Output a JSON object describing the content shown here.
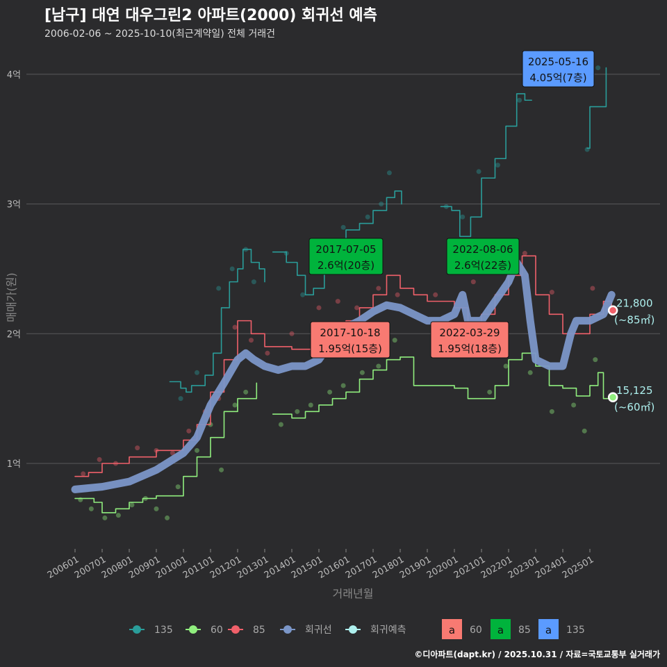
{
  "header": {
    "title": "[남구] 대연 대우그린2 아파트(2000) 회귀선 예측",
    "subtitle": "2006-02-06 ~ 2025-10-10(최근계약일) 전체 거래건"
  },
  "footer": "©디아파트(dapt.kr) / 2025.10.31 / 자료=국토교통부 실거래가",
  "chart_data": {
    "type": "line",
    "xlabel": "거래년월",
    "ylabel": "매매가(원)",
    "xlim": [
      2005.3,
      2026.6
    ],
    "ylim": [
      0.34,
      4.36
    ],
    "grid": true,
    "y_ticks": [
      {
        "v": 1,
        "label": "1억"
      },
      {
        "v": 2,
        "label": "2억"
      },
      {
        "v": 3,
        "label": "3억"
      },
      {
        "v": 4,
        "label": "4억"
      }
    ],
    "x_ticks": [
      "200601",
      "200701",
      "200801",
      "200901",
      "201001",
      "201101",
      "201201",
      "201301",
      "201401",
      "201501",
      "201601",
      "201701",
      "201801",
      "201901",
      "202001",
      "202101",
      "202201",
      "202301",
      "202401",
      "202501"
    ],
    "colors": {
      "135": "#2a9d9a",
      "60": "#90ee7e",
      "85": "#f0606a",
      "regression": "#7b96c8",
      "prediction": "#aef0ee"
    },
    "series": [
      {
        "name": "135",
        "segments": [
          [
            [
              2009.5,
              1.63
            ],
            [
              2009.9,
              1.58
            ],
            [
              2010.1,
              1.55
            ],
            [
              2010.3,
              1.6
            ],
            [
              2010.8,
              1.68
            ],
            [
              2011.1,
              1.85
            ],
            [
              2011.4,
              2.2
            ],
            [
              2011.7,
              2.4
            ],
            [
              2012.0,
              2.5
            ],
            [
              2012.2,
              2.65
            ],
            [
              2012.5,
              2.55
            ],
            [
              2012.8,
              2.5
            ],
            [
              2013.0,
              2.4
            ]
          ],
          [
            [
              2013.3,
              2.63
            ],
            [
              2013.8,
              2.55
            ],
            [
              2014.2,
              2.45
            ],
            [
              2014.5,
              2.3
            ],
            [
              2014.8,
              2.35
            ],
            [
              2015.2,
              2.55
            ],
            [
              2015.6,
              2.7
            ],
            [
              2016.0,
              2.8
            ],
            [
              2016.5,
              2.85
            ],
            [
              2017.0,
              2.95
            ],
            [
              2017.5,
              3.05
            ],
            [
              2017.8,
              3.1
            ],
            [
              2018.05,
              3.0
            ]
          ],
          [
            [
              2019.5,
              2.98
            ],
            [
              2019.9,
              2.95
            ],
            [
              2020.2,
              2.75
            ],
            [
              2020.6,
              2.9
            ],
            [
              2021.0,
              3.2
            ],
            [
              2021.5,
              3.35
            ],
            [
              2021.9,
              3.6
            ],
            [
              2022.3,
              3.85
            ],
            [
              2022.6,
              3.8
            ],
            [
              2022.85,
              3.8
            ]
          ],
          [
            [
              2024.9,
              3.43
            ],
            [
              2025.0,
              3.75
            ],
            [
              2025.5,
              3.75
            ],
            [
              2025.6,
              4.05
            ]
          ]
        ]
      },
      {
        "name": "60",
        "segments": [
          [
            [
              2006.0,
              0.73
            ],
            [
              2006.7,
              0.7
            ],
            [
              2007.0,
              0.62
            ],
            [
              2007.5,
              0.65
            ],
            [
              2008.0,
              0.7
            ],
            [
              2008.5,
              0.73
            ],
            [
              2009.0,
              0.75
            ],
            [
              2009.5,
              0.75
            ],
            [
              2010.0,
              0.9
            ],
            [
              2010.5,
              1.05
            ],
            [
              2011.0,
              1.2
            ],
            [
              2011.5,
              1.4
            ],
            [
              2012.0,
              1.5
            ],
            [
              2012.7,
              1.62
            ]
          ],
          [
            [
              2013.3,
              1.38
            ],
            [
              2014.0,
              1.35
            ],
            [
              2014.5,
              1.4
            ],
            [
              2015.0,
              1.45
            ],
            [
              2015.5,
              1.5
            ],
            [
              2016.0,
              1.55
            ],
            [
              2016.5,
              1.65
            ],
            [
              2017.0,
              1.72
            ],
            [
              2017.5,
              1.8
            ],
            [
              2018.0,
              1.82
            ],
            [
              2018.5,
              1.6
            ],
            [
              2019.0,
              1.6
            ],
            [
              2020.0,
              1.58
            ],
            [
              2020.5,
              1.5
            ],
            [
              2021.0,
              1.5
            ],
            [
              2021.5,
              1.6
            ],
            [
              2022.0,
              1.8
            ],
            [
              2022.5,
              1.85
            ],
            [
              2023.0,
              1.75
            ],
            [
              2023.5,
              1.6
            ],
            [
              2024.0,
              1.58
            ],
            [
              2024.5,
              1.52
            ],
            [
              2025.0,
              1.6
            ],
            [
              2025.3,
              1.7
            ],
            [
              2025.5,
              1.5
            ],
            [
              2025.8,
              1.51
            ]
          ]
        ]
      },
      {
        "name": "85",
        "segments": [
          [
            [
              2006.0,
              0.9
            ],
            [
              2006.5,
              0.93
            ],
            [
              2007.0,
              1.0
            ],
            [
              2008.0,
              1.05
            ],
            [
              2009.0,
              1.1
            ],
            [
              2010.0,
              1.18
            ],
            [
              2010.5,
              1.3
            ],
            [
              2011.0,
              1.55
            ],
            [
              2011.5,
              1.8
            ],
            [
              2012.0,
              2.1
            ],
            [
              2012.5,
              2.0
            ],
            [
              2013.0,
              1.9
            ],
            [
              2014.0,
              1.88
            ],
            [
              2015.0,
              1.95
            ],
            [
              2015.5,
              2.05
            ],
            [
              2016.0,
              2.1
            ],
            [
              2016.5,
              2.2
            ],
            [
              2017.0,
              2.3
            ],
            [
              2017.5,
              2.45
            ],
            [
              2018.0,
              2.35
            ],
            [
              2018.5,
              2.3
            ],
            [
              2019.0,
              2.25
            ],
            [
              2020.0,
              2.2
            ],
            [
              2020.5,
              2.05
            ],
            [
              2021.0,
              2.15
            ],
            [
              2021.5,
              2.3
            ],
            [
              2022.0,
              2.45
            ],
            [
              2022.5,
              2.6
            ],
            [
              2023.0,
              2.3
            ],
            [
              2023.5,
              2.15
            ],
            [
              2024.0,
              2.0
            ],
            [
              2024.5,
              2.0
            ],
            [
              2025.0,
              2.15
            ],
            [
              2025.5,
              2.25
            ],
            [
              2025.8,
              2.18
            ]
          ]
        ]
      },
      {
        "name": "회귀선",
        "segments": [
          [
            [
              2006.0,
              0.8
            ],
            [
              2007.0,
              0.82
            ],
            [
              2008.0,
              0.86
            ],
            [
              2009.0,
              0.95
            ],
            [
              2010.0,
              1.08
            ],
            [
              2010.5,
              1.2
            ],
            [
              2011.0,
              1.45
            ],
            [
              2011.5,
              1.62
            ],
            [
              2012.0,
              1.8
            ],
            [
              2012.3,
              1.85
            ],
            [
              2012.6,
              1.8
            ],
            [
              2013.0,
              1.75
            ],
            [
              2013.5,
              1.72
            ],
            [
              2014.0,
              1.75
            ],
            [
              2014.5,
              1.75
            ],
            [
              2015.0,
              1.8
            ],
            [
              2015.5,
              1.95
            ],
            [
              2016.0,
              2.05
            ],
            [
              2016.5,
              2.1
            ],
            [
              2017.0,
              2.17
            ],
            [
              2017.5,
              2.22
            ],
            [
              2018.0,
              2.2
            ],
            [
              2018.5,
              2.15
            ],
            [
              2019.0,
              2.1
            ],
            [
              2019.5,
              2.1
            ],
            [
              2020.0,
              2.15
            ],
            [
              2020.3,
              2.3
            ],
            [
              2020.5,
              2.1
            ],
            [
              2021.0,
              2.1
            ],
            [
              2021.5,
              2.25
            ],
            [
              2022.0,
              2.4
            ],
            [
              2022.3,
              2.55
            ],
            [
              2022.6,
              2.45
            ],
            [
              2022.8,
              2.1
            ],
            [
              2023.0,
              1.8
            ],
            [
              2023.5,
              1.75
            ],
            [
              2024.0,
              1.75
            ],
            [
              2024.3,
              2.0
            ],
            [
              2024.5,
              2.1
            ],
            [
              2025.0,
              2.1
            ],
            [
              2025.5,
              2.15
            ],
            [
              2025.8,
              2.3
            ]
          ]
        ]
      }
    ],
    "points": {
      "135": [
        [
          2009.9,
          1.5
        ],
        [
          2010.5,
          1.7
        ],
        [
          2011.3,
          2.35
        ],
        [
          2011.8,
          2.5
        ],
        [
          2012.3,
          2.65
        ],
        [
          2012.6,
          2.4
        ],
        [
          2013.8,
          2.62
        ],
        [
          2014.4,
          2.3
        ],
        [
          2015.3,
          2.6
        ],
        [
          2015.9,
          2.82
        ],
        [
          2016.8,
          2.9
        ],
        [
          2017.3,
          3.0
        ],
        [
          2017.6,
          3.24
        ],
        [
          2019.7,
          2.98
        ],
        [
          2020.3,
          2.9
        ],
        [
          2020.9,
          3.25
        ],
        [
          2021.6,
          3.3
        ],
        [
          2022.4,
          3.8
        ],
        [
          2024.9,
          3.42
        ],
        [
          2025.3,
          4.05
        ]
      ],
      "60": [
        [
          2006.2,
          0.72
        ],
        [
          2006.6,
          0.65
        ],
        [
          2007.1,
          0.58
        ],
        [
          2007.6,
          0.6
        ],
        [
          2008.1,
          0.68
        ],
        [
          2008.6,
          0.73
        ],
        [
          2009.0,
          0.65
        ],
        [
          2009.4,
          0.58
        ],
        [
          2009.8,
          0.82
        ],
        [
          2010.5,
          1.1
        ],
        [
          2011.0,
          1.3
        ],
        [
          2011.4,
          0.95
        ],
        [
          2011.9,
          1.45
        ],
        [
          2012.3,
          1.55
        ],
        [
          2013.6,
          1.3
        ],
        [
          2014.2,
          1.4
        ],
        [
          2014.7,
          1.45
        ],
        [
          2015.4,
          1.55
        ],
        [
          2015.9,
          1.6
        ],
        [
          2016.6,
          1.7
        ],
        [
          2017.2,
          1.75
        ],
        [
          2017.8,
          1.95
        ],
        [
          2021.3,
          1.55
        ],
        [
          2021.9,
          1.75
        ],
        [
          2022.8,
          1.7
        ],
        [
          2023.6,
          1.4
        ],
        [
          2024.4,
          1.45
        ],
        [
          2024.8,
          1.25
        ],
        [
          2025.2,
          1.8
        ]
      ],
      "85": [
        [
          2006.3,
          0.92
        ],
        [
          2006.9,
          1.03
        ],
        [
          2007.5,
          1.0
        ],
        [
          2008.3,
          1.12
        ],
        [
          2009.0,
          1.1
        ],
        [
          2009.6,
          1.08
        ],
        [
          2010.2,
          1.25
        ],
        [
          2010.8,
          1.4
        ],
        [
          2011.3,
          1.5
        ],
        [
          2011.9,
          2.05
        ],
        [
          2012.5,
          1.95
        ],
        [
          2013.1,
          1.85
        ],
        [
          2014.0,
          2.0
        ],
        [
          2015.0,
          2.2
        ],
        [
          2015.7,
          2.25
        ],
        [
          2016.4,
          2.2
        ],
        [
          2017.2,
          2.35
        ],
        [
          2017.9,
          2.3
        ],
        [
          2019.3,
          2.3
        ],
        [
          2020.7,
          2.4
        ],
        [
          2021.6,
          2.3
        ],
        [
          2022.2,
          2.58
        ],
        [
          2022.6,
          2.62
        ],
        [
          2023.6,
          2.32
        ],
        [
          2024.3,
          2.0
        ],
        [
          2025.1,
          2.35
        ]
      ]
    },
    "predictions": [
      {
        "x": 2025.85,
        "y": 2.18,
        "series": "85",
        "value": "21,800",
        "area": "(~85㎡)"
      },
      {
        "x": 2025.85,
        "y": 1.51,
        "series": "60",
        "value": "15,125",
        "area": "(~60㎡)"
      }
    ],
    "annotations": [
      {
        "date": "2025-05-16",
        "text": "4.05억(7층)",
        "series": "135",
        "color": "#5b9bff"
      },
      {
        "date": "2017-07-05",
        "text": "2.6억(20층)",
        "series": "85",
        "color": "#00b33c"
      },
      {
        "date": "2022-08-06",
        "text": "2.6억(22층)",
        "series": "85",
        "color": "#00b33c"
      },
      {
        "date": "2017-10-18",
        "text": "1.95억(15층)",
        "series": "60",
        "color": "#f87a72"
      },
      {
        "date": "2022-03-29",
        "text": "1.95억(18층)",
        "series": "60",
        "color": "#f87a72"
      }
    ],
    "legend": {
      "placement": "bottom",
      "lines": [
        "135",
        "60",
        "85",
        "회귀선",
        "회귀예측"
      ],
      "label_boxes": [
        {
          "glyph": "a",
          "label": "60",
          "color": "#f87a72"
        },
        {
          "glyph": "a",
          "label": "85",
          "color": "#00b33c"
        },
        {
          "glyph": "a",
          "label": "135",
          "color": "#5b9bff"
        }
      ]
    }
  }
}
